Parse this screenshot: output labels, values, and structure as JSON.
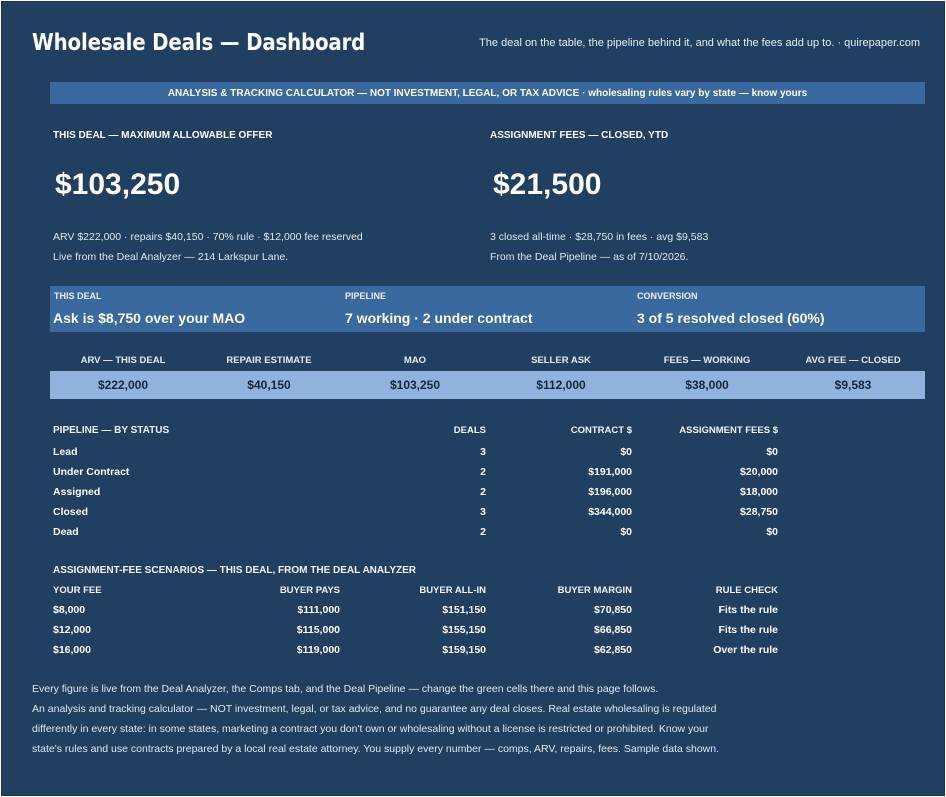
{
  "header": {
    "title": "Wholesale Deals — Dashboard",
    "tagline": "The deal on the table, the pipeline behind it, and what the fees add up to.  ·  quirepaper.com"
  },
  "banner": "ANALYSIS & TRACKING CALCULATOR — NOT INVESTMENT, LEGAL, OR TAX ADVICE  ·  wholesaling rules vary by state — know yours",
  "kpi_left": {
    "label": "THIS DEAL — MAXIMUM ALLOWABLE OFFER",
    "value": "$103,250",
    "sub1": "ARV $222,000  ·  repairs $40,150  ·  70% rule  ·  $12,000 fee reserved",
    "sub2": "Live from the Deal Analyzer — 214 Larkspur Lane."
  },
  "kpi_right": {
    "label": "ASSIGNMENT FEES — CLOSED, YTD",
    "value": "$21,500",
    "sub1": "3 closed all-time  ·  $28,750 in fees  ·  avg $9,583",
    "sub2": "From the Deal Pipeline — as of 7/10/2026."
  },
  "strip": [
    {
      "label": "THIS DEAL",
      "value": "Ask is $8,750 over your MAO"
    },
    {
      "label": "PIPELINE",
      "value": "7 working  ·  2 under contract"
    },
    {
      "label": "CONVERSION",
      "value": "3 of 5 resolved closed (60%)"
    }
  ],
  "metrics": [
    {
      "label": "ARV — THIS DEAL",
      "value": "$222,000"
    },
    {
      "label": "REPAIR ESTIMATE",
      "value": "$40,150"
    },
    {
      "label": "MAO",
      "value": "$103,250"
    },
    {
      "label": "SELLER ASK",
      "value": "$112,000"
    },
    {
      "label": "FEES — WORKING",
      "value": "$38,000"
    },
    {
      "label": "AVG FEE — CLOSED",
      "value": "$9,583"
    }
  ],
  "pipeline": {
    "title": "PIPELINE — BY STATUS",
    "headers": [
      "DEALS",
      "CONTRACT $",
      "ASSIGNMENT FEES $"
    ],
    "rows": [
      {
        "status": "Lead",
        "deals": "3",
        "contract": "$0",
        "fees": "$0"
      },
      {
        "status": "Under Contract",
        "deals": "2",
        "contract": "$191,000",
        "fees": "$20,000"
      },
      {
        "status": "Assigned",
        "deals": "2",
        "contract": "$196,000",
        "fees": "$18,000"
      },
      {
        "status": "Closed",
        "deals": "3",
        "contract": "$344,000",
        "fees": "$28,750"
      },
      {
        "status": "Dead",
        "deals": "2",
        "contract": "$0",
        "fees": "$0"
      }
    ]
  },
  "scenarios": {
    "title": "ASSIGNMENT-FEE SCENARIOS — THIS DEAL, FROM THE DEAL ANALYZER",
    "headers": [
      "YOUR FEE",
      "BUYER PAYS",
      "BUYER ALL-IN",
      "BUYER MARGIN",
      "RULE CHECK"
    ],
    "rows": [
      {
        "fee": "$8,000",
        "pays": "$111,000",
        "allin": "$151,150",
        "margin": "$70,850",
        "check": "Fits the rule"
      },
      {
        "fee": "$12,000",
        "pays": "$115,000",
        "allin": "$155,150",
        "margin": "$66,850",
        "check": "Fits the rule"
      },
      {
        "fee": "$16,000",
        "pays": "$119,000",
        "allin": "$159,150",
        "margin": "$62,850",
        "check": "Over the rule"
      }
    ]
  },
  "footer": [
    "Every figure is live from the Deal Analyzer, the Comps tab, and the Deal Pipeline — change the green cells there and this page follows.",
    "An analysis and tracking calculator — NOT investment, legal, or tax advice, and no guarantee any deal closes. Real estate wholesaling is regulated",
    "differently in every state: in some states, marketing a contract you don't own or wholesaling without a license is restricted or prohibited. Know your",
    "state's rules and use contracts prepared by a local real estate attorney. You supply every number — comps, ARV, repairs, fees. Sample data shown."
  ]
}
